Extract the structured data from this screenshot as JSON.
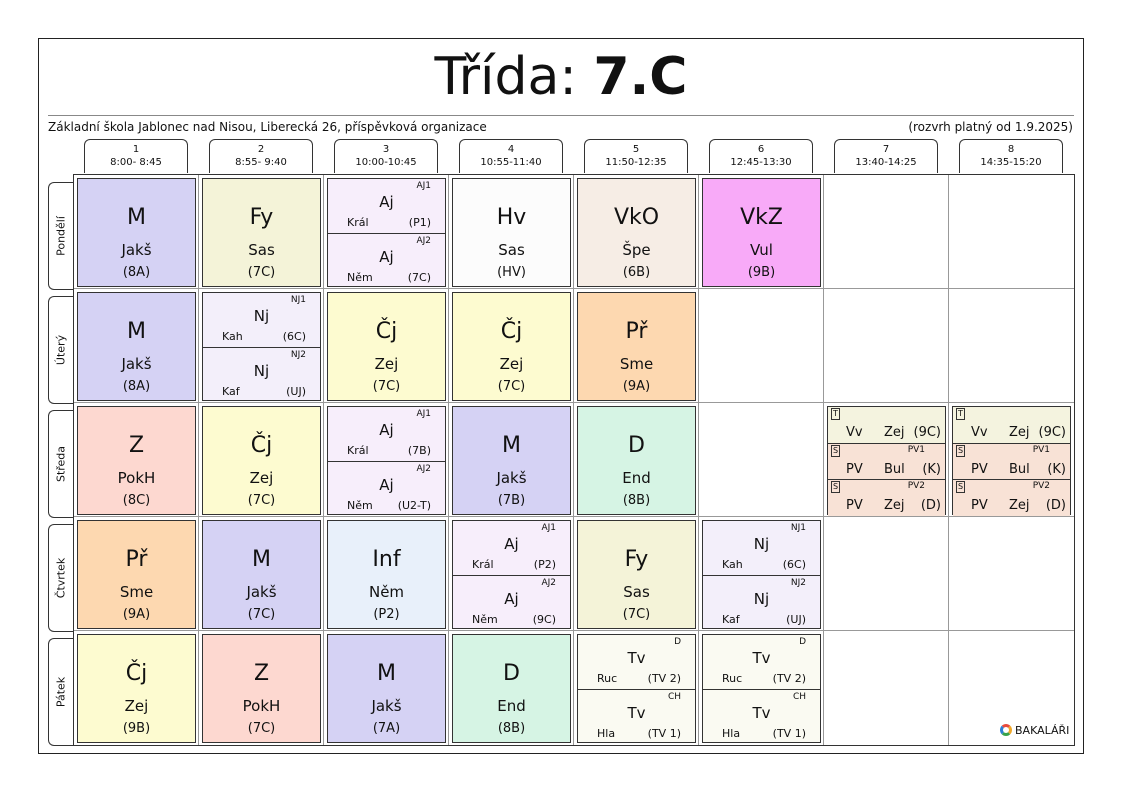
{
  "header": {
    "title_prefix": "Třída:",
    "class_name": "7.C",
    "school": "Základní škola Jablonec nad Nisou, Liberecká 26, příspěvková organizace",
    "validity": "(rozvrh platný od 1.9.2025)"
  },
  "periods": [
    {
      "num": "1",
      "time": "8:00- 8:45"
    },
    {
      "num": "2",
      "time": "8:55- 9:40"
    },
    {
      "num": "3",
      "time": "10:00-10:45"
    },
    {
      "num": "4",
      "time": "10:55-11:40"
    },
    {
      "num": "5",
      "time": "11:50-12:35"
    },
    {
      "num": "6",
      "time": "12:45-13:30"
    },
    {
      "num": "7",
      "time": "13:40-14:25"
    },
    {
      "num": "8",
      "time": "14:35-15:20"
    }
  ],
  "days": [
    "Pondělí",
    "Úterý",
    "Středa",
    "Čtvrtek",
    "Pátek"
  ],
  "lessons": {
    "mon": [
      {
        "subject": "M",
        "teacher": "Jakš",
        "room": "(8A)",
        "color": "#d5d2f4"
      },
      {
        "subject": "Fy",
        "teacher": "Sas",
        "room": "(7C)",
        "color": "#f4f3d8"
      },
      {
        "halves": [
          {
            "group": "AJ1",
            "subject": "Aj",
            "teacher": "Král",
            "room": "(P1)"
          },
          {
            "group": "AJ2",
            "subject": "Aj",
            "teacher": "Něm",
            "room": "(7C)"
          }
        ],
        "color": "#f7eefb"
      },
      {
        "subject": "Hv",
        "teacher": "Sas",
        "room": "(HV)",
        "color": "#fcfcfc"
      },
      {
        "subject": "VkO",
        "teacher": "Špe",
        "room": "(6B)",
        "color": "#f6ede5"
      },
      {
        "subject": "VkZ",
        "teacher": "Vul",
        "room": "(9B)",
        "color": "#f8aaf8"
      }
    ],
    "tue": [
      {
        "subject": "M",
        "teacher": "Jakš",
        "room": "(8A)",
        "color": "#d5d2f4"
      },
      {
        "halves": [
          {
            "group": "NJ1",
            "subject": "Nj",
            "teacher": "Kah",
            "room": "(6C)"
          },
          {
            "group": "NJ2",
            "subject": "Nj",
            "teacher": "Kaf",
            "room": "(UJ)"
          }
        ],
        "color": "#f3effa"
      },
      {
        "subject": "Čj",
        "teacher": "Zej",
        "room": "(7C)",
        "color": "#fdfbd0"
      },
      {
        "subject": "Čj",
        "teacher": "Zej",
        "room": "(7C)",
        "color": "#fdfbd0"
      },
      {
        "subject": "Př",
        "teacher": "Sme",
        "room": "(9A)",
        "color": "#fdd8b0"
      }
    ],
    "wed": [
      {
        "subject": "Z",
        "teacher": "PokH",
        "room": "(8C)",
        "color": "#fdd8d0"
      },
      {
        "subject": "Čj",
        "teacher": "Zej",
        "room": "(7C)",
        "color": "#fdfbd0"
      },
      {
        "halves": [
          {
            "group": "AJ1",
            "subject": "Aj",
            "teacher": "Král",
            "room": "(7B)"
          },
          {
            "group": "AJ2",
            "subject": "Aj",
            "teacher": "Něm",
            "room": "(U2-T)"
          }
        ],
        "color": "#f7eefb"
      },
      {
        "subject": "M",
        "teacher": "Jakš",
        "room": "(7B)",
        "color": "#d5d2f4"
      },
      {
        "subject": "D",
        "teacher": "End",
        "room": "(8B)",
        "color": "#d6f4e4"
      }
    ],
    "wed_split": [
      [
        {
          "tag": "T",
          "group": "",
          "subject": "Vv",
          "teacher": "Zej",
          "room": "(9C)",
          "color": "#f4f3df"
        },
        {
          "tag": "S",
          "group": "PV1",
          "subject": "PV",
          "teacher": "Bul",
          "room": "(K)",
          "color": "#f8e2d6"
        },
        {
          "tag": "S",
          "group": "PV2",
          "subject": "PV",
          "teacher": "Zej",
          "room": "(D)",
          "color": "#f8e2d6"
        }
      ],
      [
        {
          "tag": "T",
          "group": "",
          "subject": "Vv",
          "teacher": "Zej",
          "room": "(9C)",
          "color": "#f4f3df"
        },
        {
          "tag": "S",
          "group": "PV1",
          "subject": "PV",
          "teacher": "Bul",
          "room": "(K)",
          "color": "#f8e2d6"
        },
        {
          "tag": "S",
          "group": "PV2",
          "subject": "PV",
          "teacher": "Zej",
          "room": "(D)",
          "color": "#f8e2d6"
        }
      ]
    ],
    "thu": [
      {
        "subject": "Př",
        "teacher": "Sme",
        "room": "(9A)",
        "color": "#fdd8b0"
      },
      {
        "subject": "M",
        "teacher": "Jakš",
        "room": "(7C)",
        "color": "#d5d2f4"
      },
      {
        "subject": "Inf",
        "teacher": "Něm",
        "room": "(P2)",
        "color": "#e8f0fa"
      },
      {
        "halves": [
          {
            "group": "AJ1",
            "subject": "Aj",
            "teacher": "Král",
            "room": "(P2)"
          },
          {
            "group": "AJ2",
            "subject": "Aj",
            "teacher": "Něm",
            "room": "(9C)"
          }
        ],
        "color": "#f7eefb"
      },
      {
        "subject": "Fy",
        "teacher": "Sas",
        "room": "(7C)",
        "color": "#f4f3d8"
      },
      {
        "halves": [
          {
            "group": "NJ1",
            "subject": "Nj",
            "teacher": "Kah",
            "room": "(6C)"
          },
          {
            "group": "NJ2",
            "subject": "Nj",
            "teacher": "Kaf",
            "room": "(UJ)"
          }
        ],
        "color": "#f3effa"
      }
    ],
    "fri": [
      {
        "subject": "Čj",
        "teacher": "Zej",
        "room": "(9B)",
        "color": "#fdfbd0"
      },
      {
        "subject": "Z",
        "teacher": "PokH",
        "room": "(7C)",
        "color": "#fdd8d0"
      },
      {
        "subject": "M",
        "teacher": "Jakš",
        "room": "(7A)",
        "color": "#d5d2f4"
      },
      {
        "subject": "D",
        "teacher": "End",
        "room": "(8B)",
        "color": "#d6f4e4"
      },
      {
        "halves": [
          {
            "group": "D",
            "subject": "Tv",
            "teacher": "Ruc",
            "room": "(TV 2)"
          },
          {
            "group": "CH",
            "subject": "Tv",
            "teacher": "Hla",
            "room": "(TV 1)"
          }
        ],
        "color": "#fafaf2"
      },
      {
        "halves": [
          {
            "group": "D",
            "subject": "Tv",
            "teacher": "Ruc",
            "room": "(TV 2)"
          },
          {
            "group": "CH",
            "subject": "Tv",
            "teacher": "Hla",
            "room": "(TV 1)"
          }
        ],
        "color": "#fafaf2"
      }
    ]
  },
  "logo": {
    "text": "BAKALÁŘI"
  }
}
